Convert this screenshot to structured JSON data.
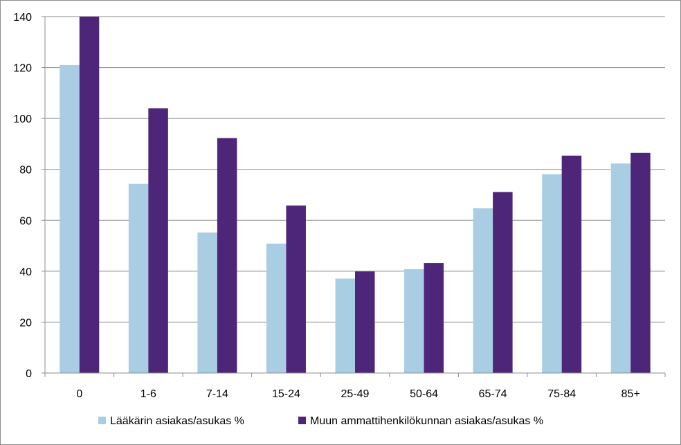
{
  "chart_data": {
    "type": "bar",
    "title": "",
    "xlabel": "",
    "ylabel": "",
    "categories": [
      "0",
      "1-6",
      "7-14",
      "15-24",
      "25-49",
      "50-64",
      "65-74",
      "75-84",
      "85+"
    ],
    "series": [
      {
        "name": "Lääkärin asiakas/asukas %",
        "color": "#a9cde3",
        "values": [
          121,
          74.3,
          55.2,
          50.8,
          37.1,
          40.8,
          64.7,
          78.1,
          82.3
        ]
      },
      {
        "name": "Muun ammattihenkilökunnan asiakas/asukas %",
        "color": "#4d2579",
        "values": [
          140,
          104,
          92.3,
          65.8,
          39.9,
          43.2,
          71.1,
          85.4,
          86.5
        ]
      }
    ],
    "ylim": [
      0,
      140
    ],
    "yticks": [
      0,
      20,
      40,
      60,
      80,
      100,
      120,
      140
    ],
    "grid": true,
    "legend_position": "bottom"
  }
}
